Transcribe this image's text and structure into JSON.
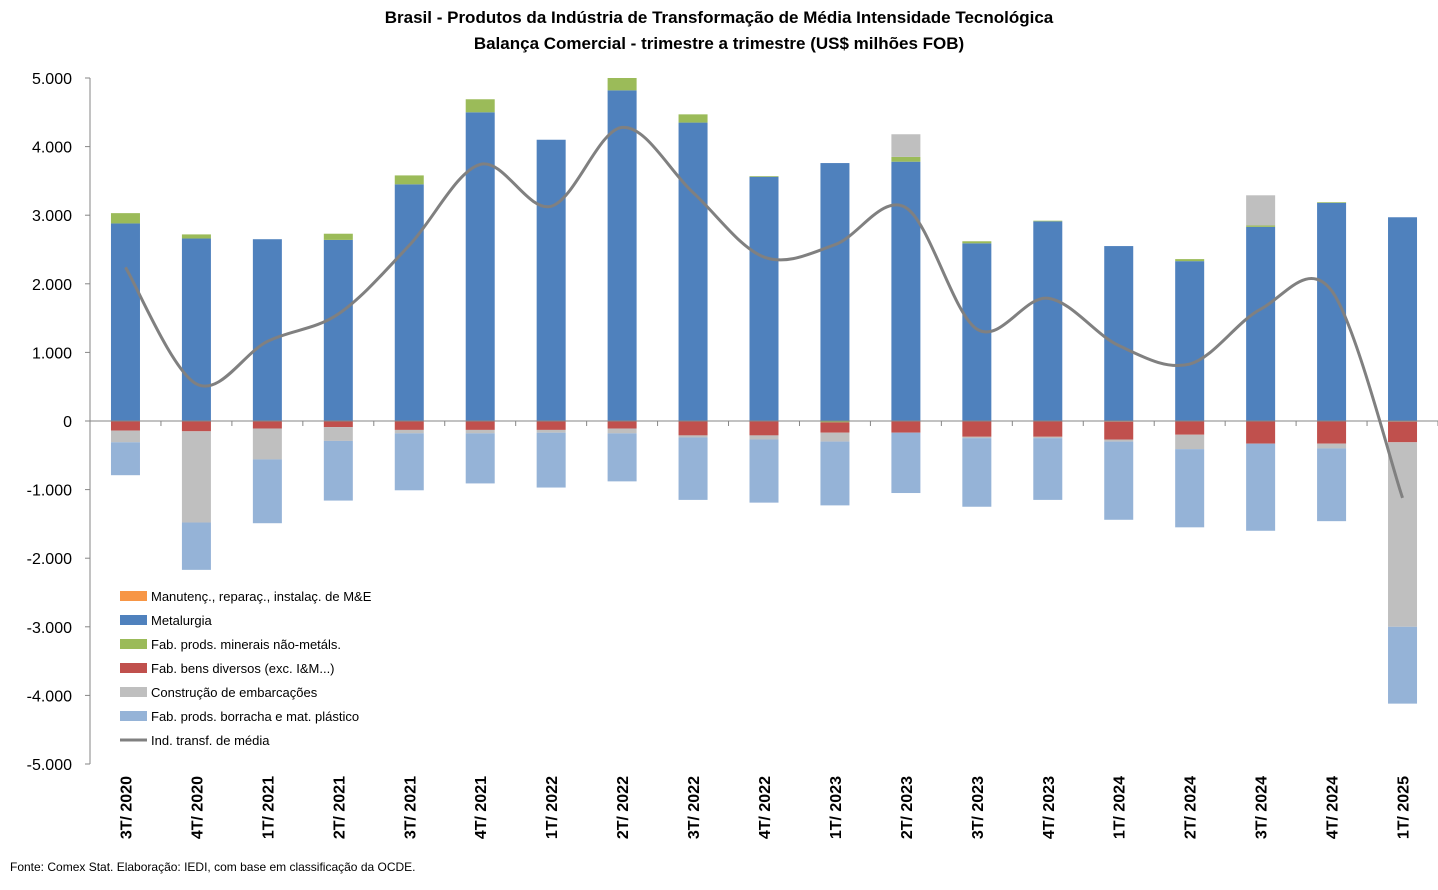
{
  "chart_data": {
    "type": "bar",
    "subtype": "stacked-bar-with-line",
    "title": "Brasil - Produtos da Indústria de Transformação de Média Intensidade Tecnológica",
    "subtitle": "Balança Comercial - trimestre a trimestre (US$ milhões FOB)",
    "categories": [
      "3T/ 2020",
      "4T/ 2020",
      "1T/ 2021",
      "2T/ 2021",
      "3T/ 2021",
      "4T/ 2021",
      "1T/ 2022",
      "2T/ 2022",
      "3T/ 2022",
      "4T/ 2022",
      "1T/ 2023",
      "2T/ 2023",
      "3T/ 2023",
      "4T/ 2023",
      "1T/ 2024",
      "2T/ 2024",
      "3T/ 2024",
      "4T/ 2024",
      "1T/ 2025"
    ],
    "ylim": [
      -5000,
      5000
    ],
    "yticks": [
      5000,
      4000,
      3000,
      2000,
      1000,
      0,
      -1000,
      -2000,
      -3000,
      -4000,
      -5000
    ],
    "ytick_labels": [
      "5.000",
      "4.000",
      "3.000",
      "2.000",
      "1.000",
      "0",
      "-1.000",
      "-2.000",
      "-3.000",
      "-4.000",
      "-5.000"
    ],
    "grid": false,
    "legend_position": "bottom-left",
    "series": [
      {
        "name": "Manutenç., reparaç., instalaç. de M&E",
        "kind": "bar",
        "color": "#f79646",
        "values": [
          0,
          0,
          0,
          0,
          0,
          0,
          0,
          0,
          0,
          0,
          0,
          0,
          0,
          0,
          0,
          0,
          0,
          0,
          0
        ]
      },
      {
        "name": "Metalurgia",
        "kind": "bar",
        "color": "#4f81bd",
        "values": [
          2880,
          2660,
          2650,
          2640,
          3450,
          4500,
          4100,
          4820,
          4350,
          3560,
          3760,
          3780,
          2590,
          2910,
          2550,
          2330,
          2830,
          3180,
          2970
        ]
      },
      {
        "name": "Fab. prods. minerais não-metáls.",
        "kind": "bar",
        "color": "#9bbb59",
        "values": [
          150,
          60,
          0,
          90,
          130,
          190,
          0,
          180,
          120,
          10,
          -20,
          70,
          30,
          10,
          -10,
          30,
          20,
          10,
          -10
        ]
      },
      {
        "name": "Fab. bens diversos (exc. I&M...)",
        "kind": "bar",
        "color": "#c0504d",
        "values": [
          -140,
          -150,
          -110,
          -90,
          -130,
          -130,
          -130,
          -110,
          -210,
          -210,
          -150,
          -170,
          -230,
          -230,
          -260,
          -200,
          -330,
          -330,
          -300
        ]
      },
      {
        "name": "Construção de embarcações",
        "kind": "bar",
        "color": "#bfbfbf",
        "values": [
          -170,
          -1330,
          -450,
          -200,
          -50,
          -50,
          -40,
          -70,
          -30,
          -60,
          -130,
          330,
          -20,
          -20,
          -30,
          -210,
          440,
          -70,
          -2690
        ]
      },
      {
        "name": "Fab. prods. borracha e mat. plástico",
        "kind": "bar",
        "color": "#95b3d7",
        "values": [
          -480,
          -690,
          -930,
          -870,
          -830,
          -730,
          -800,
          -700,
          -910,
          -920,
          -930,
          -880,
          -1000,
          -900,
          -1140,
          -1140,
          -1270,
          -1060,
          -1120
        ]
      },
      {
        "name": "Ind. transf. de média",
        "kind": "line",
        "color": "#808080",
        "values": [
          2240,
          540,
          1160,
          1560,
          2560,
          3740,
          3130,
          4280,
          3330,
          2390,
          2570,
          3110,
          1340,
          1790,
          1100,
          830,
          1630,
          1900,
          -1120
        ]
      }
    ]
  },
  "source": "Fonte: Comex Stat. Elaboração: IEDI, com base em classificação da OCDE."
}
